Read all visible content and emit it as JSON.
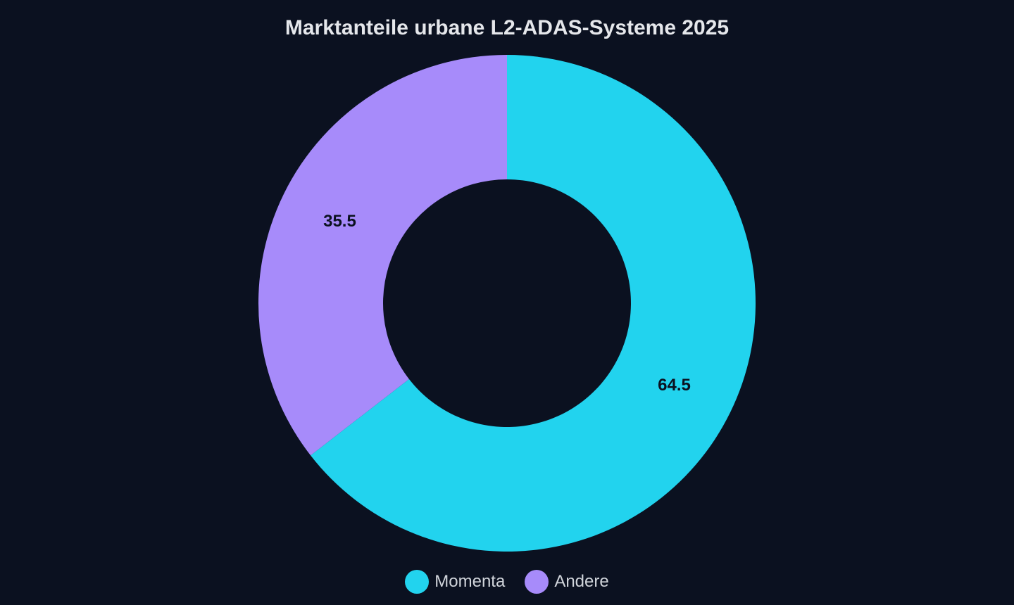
{
  "chart_data": {
    "type": "pie",
    "title": "Marktanteile urbane L2-ADAS-Systeme 2025",
    "donut": true,
    "categories": [
      "Momenta",
      "Andere"
    ],
    "values": [
      64.5,
      35.5
    ],
    "data_labels": [
      "64.5",
      "35.5"
    ],
    "colors": [
      "#22d3ee",
      "#a78bfa"
    ],
    "legend_position": "bottom-center",
    "start_angle": "12 o'clock, clockwise"
  },
  "colors": {
    "background": "#0b1120",
    "title": "#e5e7eb",
    "legend_text": "#d1d5db",
    "label_text": "#0b1120"
  }
}
